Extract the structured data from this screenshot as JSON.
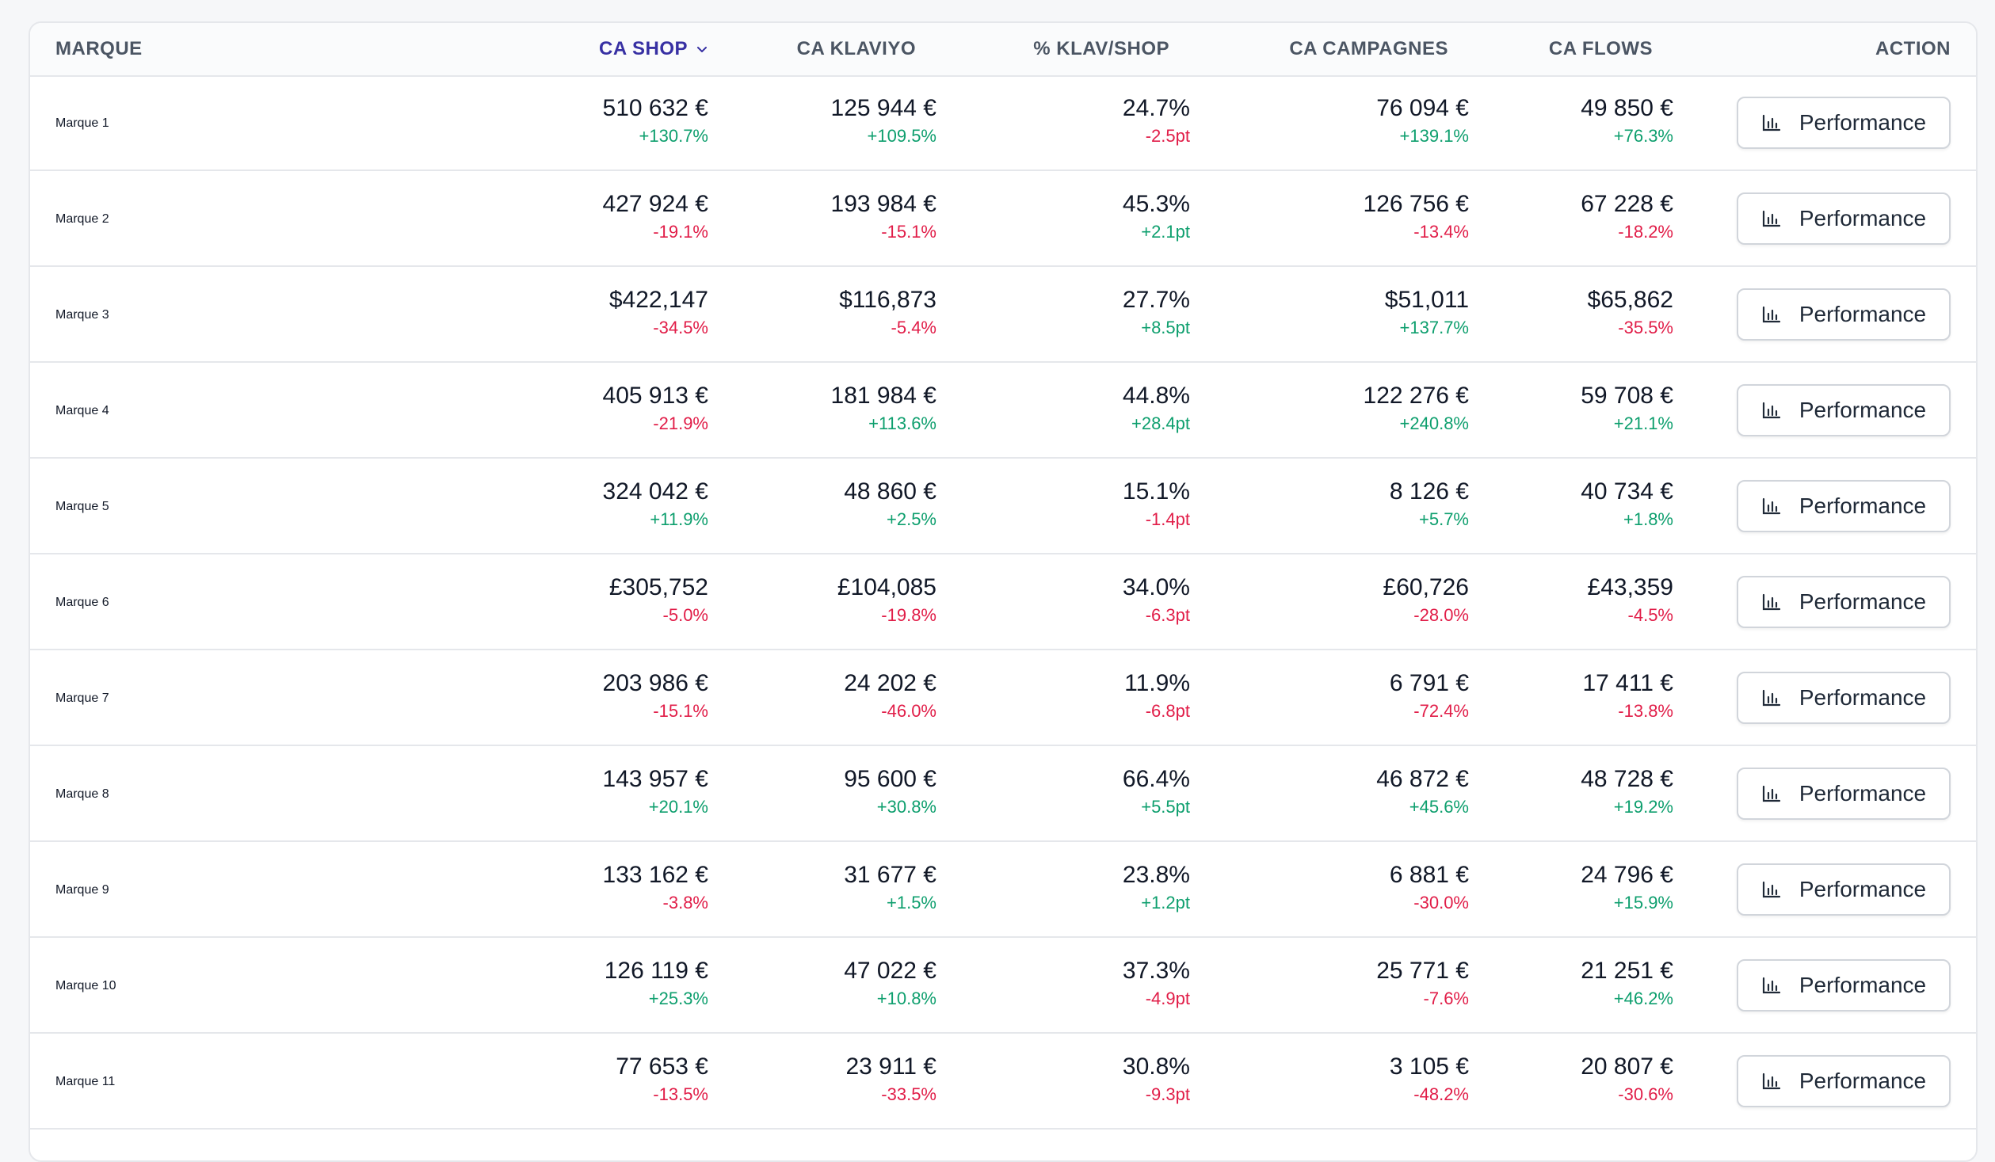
{
  "header": {
    "marque": "Marque",
    "ca_shop": "CA Shop",
    "ca_klaviyo": "CA Klaviyo",
    "pct_klav_shop": "% Klav/Shop",
    "ca_campagnes": "CA Campagnes",
    "ca_flows": "CA Flows",
    "action": "Action"
  },
  "sort_icon": "chevron-down-icon",
  "button_icon": "bar-chart-icon",
  "colors": {
    "positive": "#0e9f6e",
    "negative": "#e11d48",
    "sorted_header": "#3730a3"
  },
  "rows": [
    {
      "marque": "Marque 1",
      "shop": "510 632 €",
      "shop_d": "+130.7%",
      "klav": "125 944 €",
      "klav_d": "+109.5%",
      "pct": "24.7%",
      "pct_d": "-2.5pt",
      "camp": "76 094 €",
      "camp_d": "+139.1%",
      "flows": "49 850 €",
      "flows_d": "+76.3%",
      "action": "Performance"
    },
    {
      "marque": "Marque 2",
      "shop": "427 924 €",
      "shop_d": "-19.1%",
      "klav": "193 984 €",
      "klav_d": "-15.1%",
      "pct": "45.3%",
      "pct_d": "+2.1pt",
      "camp": "126 756 €",
      "camp_d": "-13.4%",
      "flows": "67 228 €",
      "flows_d": "-18.2%",
      "action": "Performance"
    },
    {
      "marque": "Marque 3",
      "shop": "$422,147",
      "shop_d": "-34.5%",
      "klav": "$116,873",
      "klav_d": "-5.4%",
      "pct": "27.7%",
      "pct_d": "+8.5pt",
      "camp": "$51,011",
      "camp_d": "+137.7%",
      "flows": "$65,862",
      "flows_d": "-35.5%",
      "action": "Performance"
    },
    {
      "marque": "Marque 4",
      "shop": "405 913 €",
      "shop_d": "-21.9%",
      "klav": "181 984 €",
      "klav_d": "+113.6%",
      "pct": "44.8%",
      "pct_d": "+28.4pt",
      "camp": "122 276 €",
      "camp_d": "+240.8%",
      "flows": "59 708 €",
      "flows_d": "+21.1%",
      "action": "Performance"
    },
    {
      "marque": "Marque 5",
      "shop": "324 042 €",
      "shop_d": "+11.9%",
      "klav": "48 860 €",
      "klav_d": "+2.5%",
      "pct": "15.1%",
      "pct_d": "-1.4pt",
      "camp": "8 126 €",
      "camp_d": "+5.7%",
      "flows": "40 734 €",
      "flows_d": "+1.8%",
      "action": "Performance"
    },
    {
      "marque": "Marque 6",
      "shop": "£305,752",
      "shop_d": "-5.0%",
      "klav": "£104,085",
      "klav_d": "-19.8%",
      "pct": "34.0%",
      "pct_d": "-6.3pt",
      "camp": "£60,726",
      "camp_d": "-28.0%",
      "flows": "£43,359",
      "flows_d": "-4.5%",
      "action": "Performance"
    },
    {
      "marque": "Marque 7",
      "shop": "203 986 €",
      "shop_d": "-15.1%",
      "klav": "24 202 €",
      "klav_d": "-46.0%",
      "pct": "11.9%",
      "pct_d": "-6.8pt",
      "camp": "6 791 €",
      "camp_d": "-72.4%",
      "flows": "17 411 €",
      "flows_d": "-13.8%",
      "action": "Performance"
    },
    {
      "marque": "Marque 8",
      "shop": "143 957 €",
      "shop_d": "+20.1%",
      "klav": "95 600 €",
      "klav_d": "+30.8%",
      "pct": "66.4%",
      "pct_d": "+5.5pt",
      "camp": "46 872 €",
      "camp_d": "+45.6%",
      "flows": "48 728 €",
      "flows_d": "+19.2%",
      "action": "Performance"
    },
    {
      "marque": "Marque 9",
      "shop": "133 162 €",
      "shop_d": "-3.8%",
      "klav": "31 677 €",
      "klav_d": "+1.5%",
      "pct": "23.8%",
      "pct_d": "+1.2pt",
      "camp": "6 881 €",
      "camp_d": "-30.0%",
      "flows": "24 796 €",
      "flows_d": "+15.9%",
      "action": "Performance"
    },
    {
      "marque": "Marque 10",
      "shop": "126 119 €",
      "shop_d": "+25.3%",
      "klav": "47 022 €",
      "klav_d": "+10.8%",
      "pct": "37.3%",
      "pct_d": "-4.9pt",
      "camp": "25 771 €",
      "camp_d": "-7.6%",
      "flows": "21 251 €",
      "flows_d": "+46.2%",
      "action": "Performance"
    },
    {
      "marque": "Marque 11",
      "shop": "77 653 €",
      "shop_d": "-13.5%",
      "klav": "23 911 €",
      "klav_d": "-33.5%",
      "pct": "30.8%",
      "pct_d": "-9.3pt",
      "camp": "3 105 €",
      "camp_d": "-48.2%",
      "flows": "20 807 €",
      "flows_d": "-30.6%",
      "action": "Performance"
    }
  ]
}
